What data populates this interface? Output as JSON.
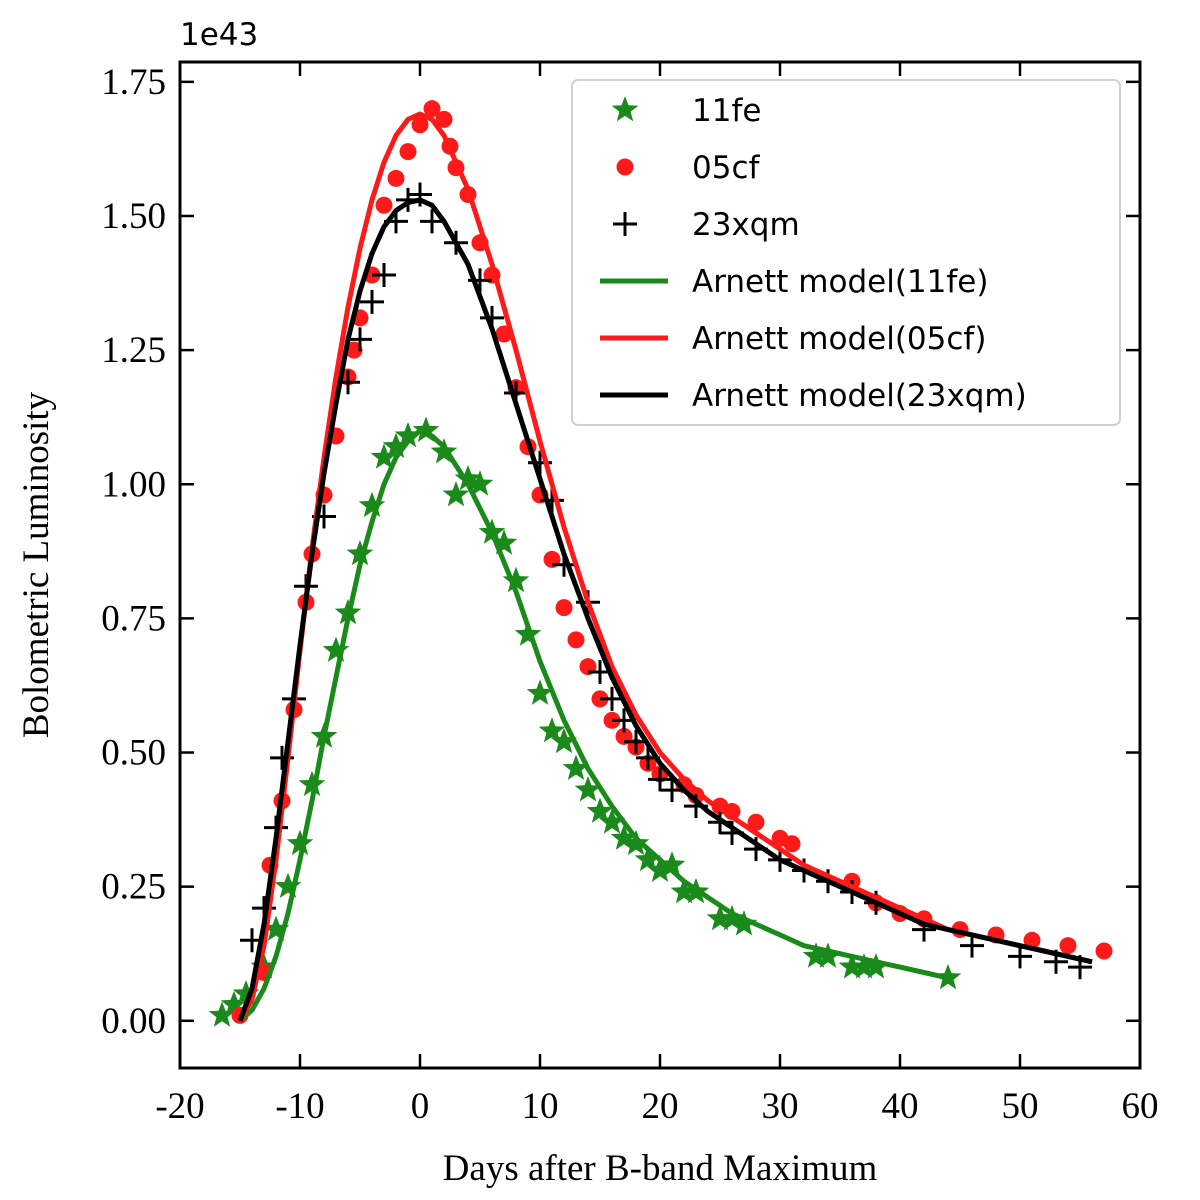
{
  "chart_data": {
    "type": "scatter",
    "xlabel": "Days after B-band Maximum",
    "ylabel": "Bolometric Luminosity",
    "y_offset_label": "1e43",
    "xlim": [
      -20,
      60
    ],
    "xticks": [
      -20,
      -10,
      0,
      10,
      20,
      30,
      40,
      50,
      60
    ],
    "ylim": [
      -0.088,
      1.787
    ],
    "yticks": [
      {
        "value": 0,
        "label": "0.00"
      },
      {
        "value": 0.25,
        "label": "0.25"
      },
      {
        "value": 0.5,
        "label": "0.50"
      },
      {
        "value": 0.75,
        "label": "0.75"
      },
      {
        "value": 1,
        "label": "1.00"
      },
      {
        "value": 1.25,
        "label": "1.25"
      },
      {
        "value": 1.5,
        "label": "1.50"
      },
      {
        "value": 1.75,
        "label": "1.75"
      }
    ],
    "legend": "upper right",
    "series": [
      {
        "name": "11fe",
        "type": "scatter",
        "marker": "star",
        "color": "#1a8a1a",
        "x": [
          -16.5,
          -15.5,
          -14.5,
          -13,
          -12,
          -11,
          -10,
          -9,
          -8,
          -7,
          -6,
          -5,
          -4,
          -3,
          -2,
          -1,
          0.5,
          2,
          3,
          4,
          5,
          6,
          7,
          8,
          9,
          10,
          11,
          12,
          13,
          14,
          15,
          16,
          17,
          18,
          19,
          20,
          21,
          22,
          23,
          25,
          26,
          27,
          33,
          34,
          36,
          37,
          38,
          44
        ],
        "values": [
          0.01,
          0.03,
          0.05,
          0.1,
          0.17,
          0.25,
          0.33,
          0.44,
          0.53,
          0.69,
          0.76,
          0.87,
          0.96,
          1.05,
          1.07,
          1.09,
          1.1,
          1.06,
          0.98,
          1.01,
          1.0,
          0.91,
          0.89,
          0.82,
          0.72,
          0.61,
          0.54,
          0.52,
          0.47,
          0.43,
          0.39,
          0.37,
          0.34,
          0.33,
          0.3,
          0.28,
          0.29,
          0.24,
          0.24,
          0.19,
          0.19,
          0.18,
          0.12,
          0.12,
          0.1,
          0.1,
          0.1,
          0.08
        ]
      },
      {
        "name": "05cf",
        "type": "scatter",
        "marker": "circle",
        "color": "#ff1a1a",
        "x": [
          -15,
          -13,
          -12.5,
          -11.5,
          -10.5,
          -9.5,
          -9,
          -8,
          -7,
          -6,
          -5.5,
          -5,
          -4,
          -3,
          -2,
          -1,
          0,
          1,
          2,
          2.5,
          3,
          4,
          5,
          6,
          7,
          8,
          9,
          10,
          11,
          12,
          13,
          14,
          15,
          16,
          17,
          18,
          19,
          20,
          22,
          23,
          25,
          26,
          28,
          30,
          31,
          36,
          38,
          40,
          42,
          45,
          48,
          51,
          54,
          57
        ],
        "values": [
          0.01,
          0.09,
          0.29,
          0.41,
          0.58,
          0.78,
          0.87,
          0.98,
          1.09,
          1.2,
          1.25,
          1.31,
          1.39,
          1.52,
          1.57,
          1.62,
          1.67,
          1.7,
          1.68,
          1.63,
          1.59,
          1.54,
          1.45,
          1.39,
          1.28,
          1.18,
          1.07,
          0.98,
          0.86,
          0.77,
          0.71,
          0.66,
          0.6,
          0.56,
          0.53,
          0.51,
          0.48,
          0.46,
          0.44,
          0.42,
          0.4,
          0.39,
          0.37,
          0.34,
          0.33,
          0.26,
          0.22,
          0.2,
          0.19,
          0.17,
          0.16,
          0.15,
          0.14,
          0.13
        ]
      },
      {
        "name": "23xqm",
        "type": "scatter",
        "marker": "plus",
        "color": "#000000",
        "x": [
          -14,
          -13,
          -12,
          -11.5,
          -10.5,
          -9.5,
          -8,
          -6,
          -5,
          -4,
          -3,
          -2,
          -1,
          0,
          1,
          3,
          5,
          6,
          8,
          10,
          11,
          12,
          14,
          15,
          16,
          17,
          18,
          19,
          20,
          21,
          23,
          25,
          26,
          28,
          30,
          32,
          34,
          36,
          38,
          42,
          46,
          50,
          53,
          55
        ],
        "values": [
          0.15,
          0.21,
          0.36,
          0.49,
          0.6,
          0.81,
          0.94,
          1.19,
          1.27,
          1.34,
          1.39,
          1.49,
          1.53,
          1.54,
          1.49,
          1.45,
          1.38,
          1.31,
          1.17,
          1.04,
          0.97,
          0.85,
          0.78,
          0.65,
          0.6,
          0.56,
          0.52,
          0.49,
          0.45,
          0.43,
          0.4,
          0.37,
          0.35,
          0.32,
          0.3,
          0.28,
          0.26,
          0.24,
          0.22,
          0.17,
          0.14,
          0.12,
          0.11,
          0.1
        ]
      },
      {
        "name": "Arnett model(11fe)",
        "type": "line",
        "color": "#1a8a1a",
        "x": [
          -15,
          -14,
          -13,
          -12,
          -11,
          -10,
          -9,
          -8,
          -7,
          -6,
          -5,
          -4,
          -3,
          -2,
          -1,
          0,
          1,
          2,
          4,
          6,
          8,
          10,
          12,
          14,
          16,
          18,
          20,
          22,
          24,
          26,
          28,
          30,
          32,
          34,
          36,
          38,
          40,
          42,
          44
        ],
        "values": [
          0,
          0.02,
          0.06,
          0.12,
          0.2,
          0.3,
          0.41,
          0.53,
          0.64,
          0.75,
          0.85,
          0.93,
          1.0,
          1.05,
          1.08,
          1.1,
          1.09,
          1.07,
          1.0,
          0.91,
          0.8,
          0.67,
          0.56,
          0.47,
          0.4,
          0.34,
          0.3,
          0.26,
          0.23,
          0.2,
          0.18,
          0.16,
          0.14,
          0.13,
          0.12,
          0.11,
          0.1,
          0.09,
          0.08
        ]
      },
      {
        "name": "Arnett model(05cf)",
        "type": "line",
        "color": "#ff1a1a",
        "x": [
          -15,
          -14,
          -13,
          -12,
          -11,
          -10,
          -9,
          -8,
          -7,
          -6,
          -5,
          -4,
          -3,
          -2,
          -1,
          0,
          1,
          2,
          4,
          6,
          8,
          10,
          12,
          14,
          16,
          18,
          20,
          22,
          24,
          26,
          28,
          30,
          32,
          34,
          36,
          38,
          40,
          42,
          44,
          46,
          48,
          50,
          52,
          54,
          56
        ],
        "values": [
          0,
          0.04,
          0.14,
          0.3,
          0.49,
          0.69,
          0.88,
          1.05,
          1.2,
          1.33,
          1.44,
          1.53,
          1.6,
          1.65,
          1.68,
          1.69,
          1.68,
          1.65,
          1.55,
          1.41,
          1.25,
          1.08,
          0.92,
          0.78,
          0.66,
          0.57,
          0.5,
          0.45,
          0.41,
          0.38,
          0.35,
          0.32,
          0.29,
          0.27,
          0.25,
          0.23,
          0.21,
          0.19,
          0.17,
          0.16,
          0.15,
          0.14,
          0.13,
          0.12,
          0.11
        ]
      },
      {
        "name": "Arnett model(23xqm)",
        "type": "line",
        "color": "#000000",
        "x": [
          -15,
          -14,
          -13,
          -12,
          -11,
          -10,
          -9,
          -8,
          -7,
          -6,
          -5,
          -4,
          -3,
          -2,
          -1,
          0,
          1,
          2,
          4,
          6,
          8,
          10,
          12,
          14,
          16,
          18,
          20,
          22,
          24,
          26,
          28,
          30,
          32,
          34,
          36,
          38,
          40,
          42,
          44,
          46,
          48,
          50,
          52,
          54,
          56
        ],
        "values": [
          0,
          0.06,
          0.18,
          0.34,
          0.52,
          0.7,
          0.87,
          1.02,
          1.15,
          1.27,
          1.36,
          1.43,
          1.48,
          1.51,
          1.525,
          1.53,
          1.52,
          1.49,
          1.41,
          1.29,
          1.15,
          1.01,
          0.87,
          0.75,
          0.64,
          0.55,
          0.48,
          0.43,
          0.39,
          0.36,
          0.33,
          0.3,
          0.28,
          0.26,
          0.24,
          0.22,
          0.2,
          0.18,
          0.17,
          0.16,
          0.15,
          0.14,
          0.13,
          0.12,
          0.11
        ]
      }
    ]
  }
}
